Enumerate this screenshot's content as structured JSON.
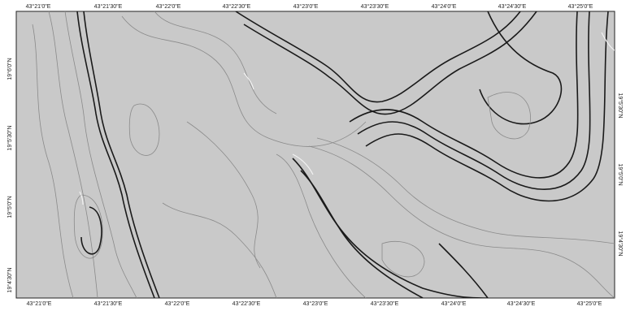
{
  "map": {
    "top_labels": [
      "43°21'0\"E",
      "43°21'30\"E",
      "43°22'0\"E",
      "43°22'30\"E",
      "43°23'0\"E",
      "43°23'30\"E",
      "43°24'0\"E",
      "43°24'30\"E",
      "43°25'0\"E"
    ],
    "bottom_labels": [
      "43°21'0\"E",
      "43°21'30\"E",
      "43°22'0\"E",
      "43°22'30\"E",
      "43°23'0\"E",
      "43°23'30\"E",
      "43°24'0\"E",
      "43°24'30\"E",
      "43°25'0\"E"
    ],
    "left_labels": [
      "19°6'0\"N",
      "19°5'30\"N",
      "19°5'0\"N",
      "19°4'30\"N"
    ],
    "right_labels": [
      "19°5'30\"N",
      "19°5'0\"N",
      "19°4'30\"N"
    ]
  }
}
